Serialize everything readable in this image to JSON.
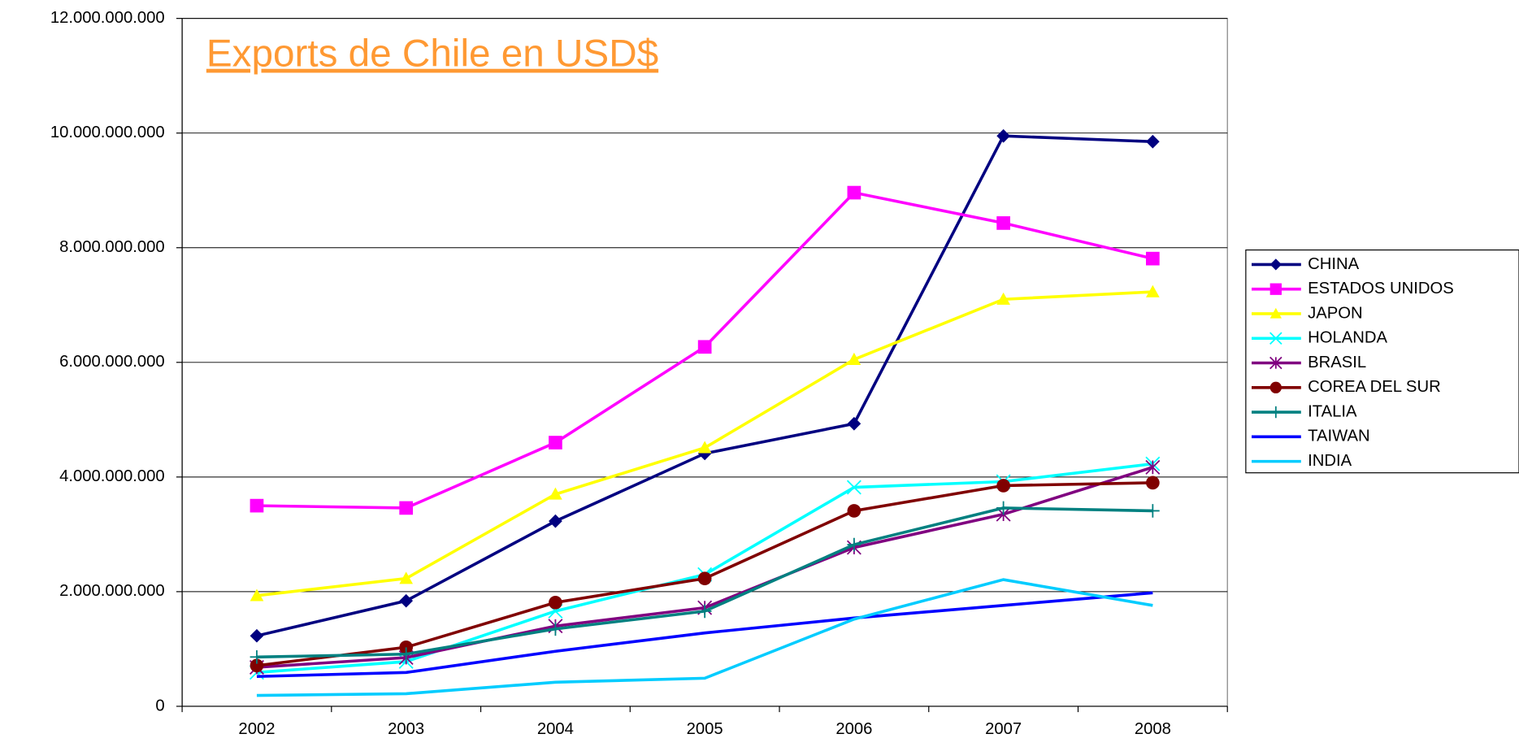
{
  "chart_data": {
    "type": "line",
    "title": "Exports de Chile en USD$",
    "categories": [
      "2002",
      "2003",
      "2004",
      "2005",
      "2006",
      "2007",
      "2008"
    ],
    "ylim": [
      0,
      12000000000
    ],
    "yticks": [
      0,
      {
        "value": 2000000000,
        "label": "2.000.000.000"
      },
      {
        "value": 4000000000,
        "label": "4.000.000.000"
      },
      {
        "value": 6000000000,
        "label": "6.000.000.000"
      },
      {
        "value": 8000000000,
        "label": "8.000.000.000"
      },
      {
        "value": 10000000000,
        "label": "10.000.000.000"
      },
      {
        "value": 12000000000,
        "label": "12.000.000.000"
      }
    ],
    "grid": true,
    "legend": "right",
    "series": [
      {
        "name": "CHINA",
        "color": "#000080",
        "marker": "diamond",
        "values": [
          1230000000,
          1840000000,
          3230000000,
          4410000000,
          4930000000,
          9950000000,
          9850000000
        ]
      },
      {
        "name": "ESTADOS UNIDOS",
        "color": "#ff00ff",
        "marker": "square",
        "values": [
          3500000000,
          3460000000,
          4600000000,
          6270000000,
          8960000000,
          8430000000,
          7810000000
        ]
      },
      {
        "name": "JAPON",
        "color": "#ffff00",
        "marker": "triangle",
        "values": [
          1930000000,
          2230000000,
          3700000000,
          4510000000,
          6050000000,
          7100000000,
          7230000000
        ]
      },
      {
        "name": "HOLANDA",
        "color": "#00ffff",
        "marker": "x",
        "values": [
          590000000,
          780000000,
          1660000000,
          2300000000,
          3820000000,
          3920000000,
          4230000000
        ]
      },
      {
        "name": "BRASIL",
        "color": "#800080",
        "marker": "star",
        "values": [
          680000000,
          850000000,
          1400000000,
          1720000000,
          2770000000,
          3350000000,
          4170000000
        ]
      },
      {
        "name": "COREA DEL SUR",
        "color": "#800000",
        "marker": "circle",
        "values": [
          710000000,
          1030000000,
          1810000000,
          2230000000,
          3410000000,
          3850000000,
          3900000000
        ]
      },
      {
        "name": "ITALIA",
        "color": "#008080",
        "marker": "plus",
        "values": [
          860000000,
          910000000,
          1350000000,
          1660000000,
          2820000000,
          3460000000,
          3410000000
        ]
      },
      {
        "name": "TAIWAN",
        "color": "#0000ff",
        "marker": "none",
        "values": [
          520000000,
          590000000,
          960000000,
          1280000000,
          1540000000,
          1760000000,
          1980000000
        ]
      },
      {
        "name": "INDIA",
        "color": "#00ccff",
        "marker": "none",
        "values": [
          190000000,
          220000000,
          420000000,
          490000000,
          1520000000,
          2210000000,
          1760000000
        ]
      }
    ]
  }
}
